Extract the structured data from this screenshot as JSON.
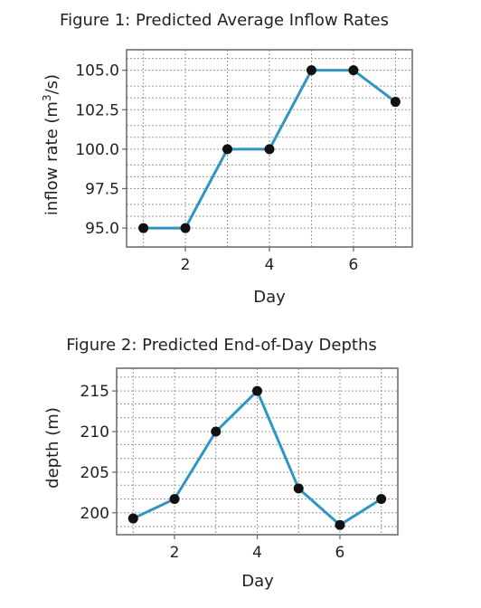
{
  "colors": {
    "series": "#2e95c4",
    "marker": "#111111"
  },
  "chart_data": [
    {
      "type": "line",
      "title": "Figure 1: Predicted Average Inflow Rates",
      "xlabel": "Day",
      "ylabel_text": "inflow rate (m",
      "ylabel_sup": "3",
      "ylabel_tail": "/s)",
      "x": [
        1,
        2,
        3,
        4,
        5,
        6,
        7
      ],
      "series": [
        {
          "values": [
            95.0,
            95.0,
            100.0,
            100.0,
            105.0,
            105.0,
            103.0
          ]
        }
      ],
      "xlim": [
        0.6,
        7.4
      ],
      "ylim": [
        93.8,
        106.3
      ],
      "x_ticks": [
        2,
        4,
        6
      ],
      "x_tick_labels": [
        "2",
        "4",
        "6"
      ],
      "x_grid": [
        1,
        2,
        3,
        4,
        5,
        6,
        7
      ],
      "y_ticks": [
        95.0,
        97.5,
        100.0,
        102.5,
        105.0
      ],
      "y_tick_labels": [
        "95.0",
        "97.5",
        "100.0",
        "102.5",
        "105.0"
      ],
      "y_grid": [
        93.8,
        95.0,
        95.75,
        96.5,
        97.5,
        98.25,
        99.0,
        100.0,
        100.75,
        101.5,
        102.5,
        103.25,
        104.0,
        105.0,
        105.75
      ],
      "grid": true
    },
    {
      "type": "line",
      "title": "Figure 2: Predicted End-of-Day Depths",
      "xlabel": "Day",
      "ylabel_text": "depth (m)",
      "ylabel_sup": "",
      "ylabel_tail": "",
      "x": [
        1,
        2,
        3,
        4,
        5,
        6,
        7
      ],
      "series": [
        {
          "values": [
            199.3,
            201.7,
            210.0,
            215.0,
            203.0,
            198.5,
            201.7
          ]
        }
      ],
      "xlim": [
        0.6,
        7.4
      ],
      "ylim": [
        197.3,
        217.8
      ],
      "x_ticks": [
        2,
        4,
        6
      ],
      "x_tick_labels": [
        "2",
        "4",
        "6"
      ],
      "x_grid": [
        1,
        2,
        3,
        4,
        5,
        6,
        7
      ],
      "y_ticks": [
        200,
        205,
        210,
        215
      ],
      "y_tick_labels": [
        "200",
        "205",
        "210",
        "215"
      ],
      "y_grid": [
        198.3,
        200,
        201.7,
        203.4,
        205,
        206.7,
        208.4,
        210,
        211.7,
        213.4,
        215,
        216.7
      ],
      "grid": true
    }
  ]
}
